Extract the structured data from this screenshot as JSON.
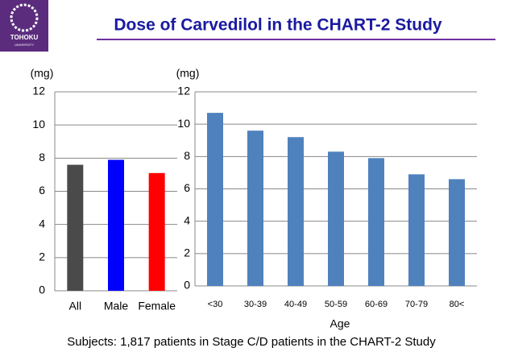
{
  "header": {
    "logo_name": "TOHOKU",
    "logo_sub": "UNIVERSITY",
    "title": "Dose of Carvedilol in the CHART-2 Study"
  },
  "chart_data": [
    {
      "type": "bar",
      "y_label": "(mg)",
      "categories": [
        "All",
        "Male",
        "Female"
      ],
      "values": [
        7.6,
        7.9,
        7.1
      ],
      "colors": [
        "#4a4a4a",
        "#0000ff",
        "#ff0000"
      ],
      "ylim": [
        0,
        12
      ],
      "yticks": [
        0,
        2,
        4,
        6,
        8,
        10,
        12
      ],
      "grid": true
    },
    {
      "type": "bar",
      "y_label": "(mg)",
      "x_label": "Age",
      "categories": [
        "<30",
        "30-39",
        "40-49",
        "50-59",
        "60-69",
        "70-79",
        "80<"
      ],
      "values": [
        10.7,
        9.6,
        9.2,
        8.3,
        7.9,
        6.9,
        6.6
      ],
      "color": "#4f81bd",
      "ylim": [
        0,
        12
      ],
      "yticks": [
        0,
        2,
        4,
        6,
        8,
        10,
        12
      ],
      "grid": true
    }
  ],
  "footer": "Subjects: 1,817 patients in Stage C/D patients in the CHART-2 Study"
}
